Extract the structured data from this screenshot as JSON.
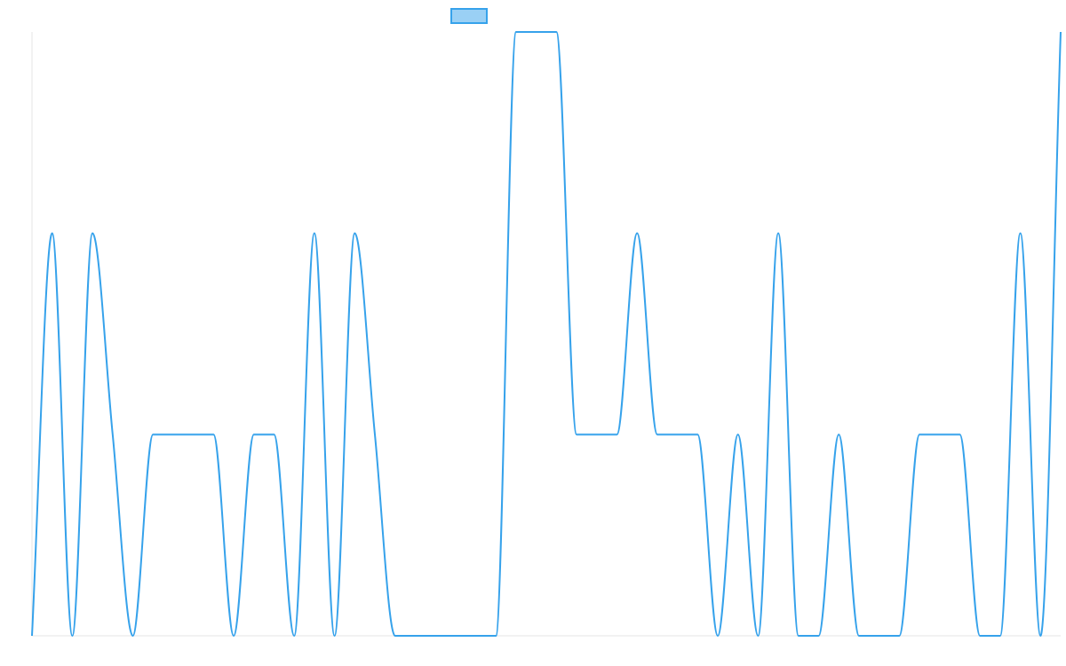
{
  "chart_data": {
    "type": "line",
    "title": "",
    "xlabel": "",
    "ylabel": "",
    "legend": {
      "position": "top-center",
      "entries": [
        {
          "label": "",
          "swatch_fill": "#9ad0f5",
          "swatch_stroke": "#36a2eb"
        }
      ]
    },
    "axes": {
      "x_ticks_visible": false,
      "y_ticks_visible": false,
      "grid": false
    },
    "ylim": [
      0,
      3
    ],
    "x": [
      0,
      1,
      2,
      3,
      4,
      5,
      6,
      7,
      8,
      9,
      10,
      11,
      12,
      13,
      14,
      15,
      16,
      17,
      18,
      19,
      20,
      21,
      22,
      23,
      24,
      25,
      26,
      27,
      28,
      29,
      30,
      31,
      32,
      33,
      34,
      35,
      36,
      37,
      38,
      39,
      40,
      41,
      42,
      43,
      44,
      45,
      46,
      47,
      48,
      49,
      50,
      51
    ],
    "series": [
      {
        "color": "#36a2eb",
        "values": [
          0,
          2,
          0,
          2,
          1,
          0,
          1,
          1,
          1,
          1,
          0,
          1,
          1,
          0,
          2,
          0,
          2,
          1,
          0,
          0,
          0,
          0,
          0,
          0,
          3,
          3,
          3,
          1,
          1,
          1,
          2,
          1,
          1,
          1,
          0,
          1,
          0,
          2,
          0,
          0,
          1,
          0,
          0,
          0,
          1,
          1,
          1,
          0,
          0,
          2,
          0,
          3
        ]
      }
    ]
  }
}
